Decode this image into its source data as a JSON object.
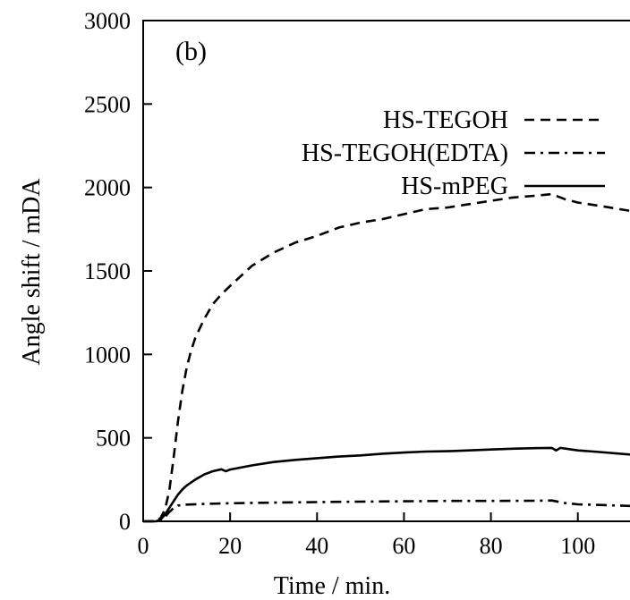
{
  "chart_data": {
    "type": "line",
    "panel_label": "(b)",
    "xlabel": "Time / min.",
    "ylabel": "Angle shift / mDA",
    "xlim": [
      0,
      112
    ],
    "ylim": [
      0,
      3000
    ],
    "x_ticks": [
      0,
      20,
      40,
      60,
      80,
      100
    ],
    "y_ticks": [
      0,
      500,
      1000,
      1500,
      2000,
      2500,
      3000
    ],
    "grid": false,
    "legend_position": "top-right",
    "series": [
      {
        "name": "HS-TEGOH",
        "dash": "dashed",
        "color": "#000000",
        "x": [
          0,
          3,
          4,
          5,
          6,
          7,
          8,
          9,
          10,
          11,
          12,
          14,
          16,
          18,
          20,
          25,
          30,
          35,
          40,
          45,
          50,
          55,
          60,
          65,
          70,
          75,
          80,
          85,
          90,
          94,
          97,
          100,
          105,
          112
        ],
        "y": [
          0,
          0,
          20,
          70,
          180,
          380,
          600,
          780,
          920,
          1020,
          1100,
          1210,
          1300,
          1360,
          1410,
          1530,
          1610,
          1670,
          1710,
          1760,
          1790,
          1810,
          1840,
          1870,
          1880,
          1900,
          1920,
          1940,
          1950,
          1960,
          1930,
          1910,
          1890,
          1860
        ]
      },
      {
        "name": "HS-TEGOH(EDTA)",
        "dash": "dash-dot",
        "color": "#000000",
        "x": [
          0,
          3,
          4,
          5,
          6,
          7,
          8,
          10,
          15,
          20,
          30,
          40,
          50,
          60,
          70,
          80,
          90,
          94,
          97,
          100,
          105,
          112
        ],
        "y": [
          0,
          0,
          5,
          25,
          55,
          80,
          95,
          100,
          105,
          108,
          112,
          115,
          118,
          120,
          122,
          122,
          123,
          125,
          110,
          102,
          98,
          92
        ]
      },
      {
        "name": "HS-mPEG",
        "dash": "solid",
        "color": "#000000",
        "x": [
          0,
          3,
          4,
          5,
          6,
          7,
          8,
          9,
          10,
          12,
          14,
          16,
          18,
          19,
          20,
          25,
          30,
          35,
          40,
          45,
          50,
          55,
          60,
          65,
          70,
          75,
          80,
          85,
          90,
          94,
          95,
          96,
          100,
          105,
          112
        ],
        "y": [
          0,
          0,
          10,
          40,
          80,
          120,
          160,
          190,
          215,
          250,
          280,
          300,
          312,
          300,
          310,
          335,
          355,
          368,
          378,
          388,
          395,
          405,
          412,
          418,
          420,
          425,
          430,
          435,
          438,
          440,
          425,
          440,
          425,
          415,
          400
        ]
      }
    ]
  }
}
